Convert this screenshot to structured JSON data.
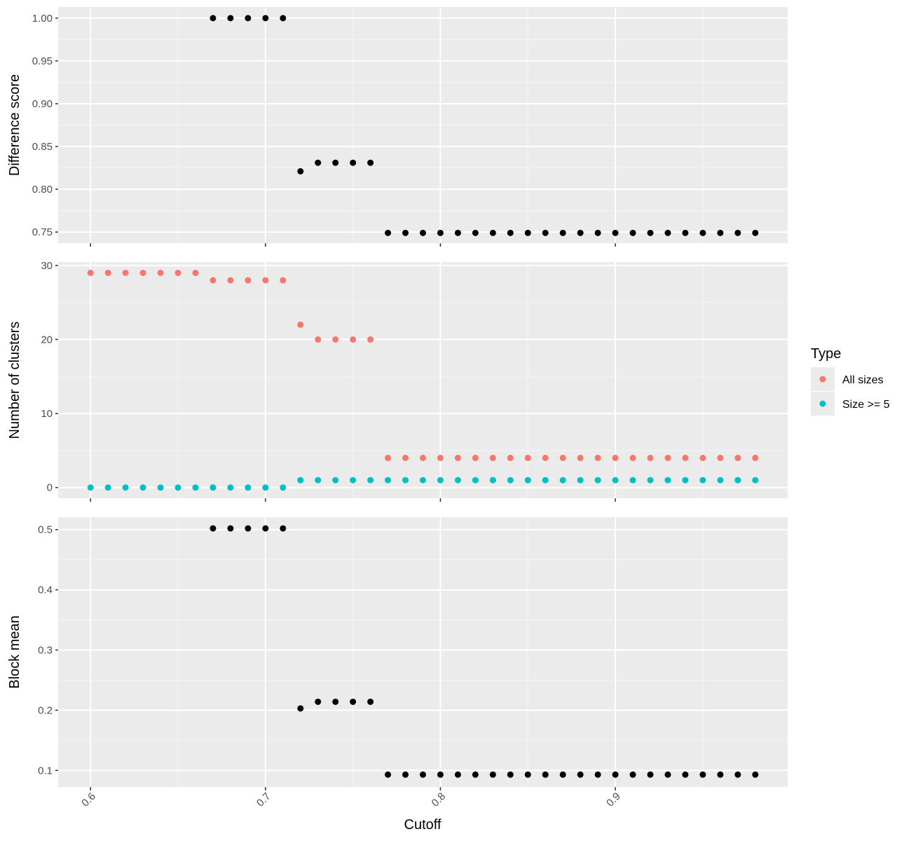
{
  "chart_data": {
    "type": "scatter",
    "xlabel": "Cutoff",
    "x_ticks": [
      "0.6",
      "0.7",
      "0.8",
      "0.9"
    ],
    "xlim": [
      0.5815,
      0.9985
    ],
    "x": [
      0.6,
      0.61,
      0.62,
      0.63,
      0.64,
      0.65,
      0.66,
      0.67,
      0.68,
      0.69,
      0.7,
      0.71,
      0.72,
      0.73,
      0.74,
      0.75,
      0.76,
      0.77,
      0.78,
      0.79,
      0.8,
      0.81,
      0.82,
      0.83,
      0.84,
      0.85,
      0.86,
      0.87,
      0.88,
      0.89,
      0.9,
      0.91,
      0.92,
      0.93,
      0.94,
      0.95,
      0.96,
      0.97,
      0.98
    ],
    "grid": true,
    "panels": [
      {
        "name": "difference",
        "ylabel": "Difference score",
        "ylim": [
          0.737,
          1.013
        ],
        "y_ticks": [
          "0.75",
          "0.80",
          "0.85",
          "0.90",
          "0.95",
          "1.00"
        ],
        "y_tick_values": [
          0.75,
          0.8,
          0.85,
          0.9,
          0.95,
          1.0
        ],
        "series": [
          {
            "color": "#000000",
            "x_start": 0.67,
            "values": [
              1.0,
              1.0,
              1.0,
              1.0,
              1.0,
              0.821,
              0.831,
              0.831,
              0.831,
              0.831,
              0.749,
              0.749,
              0.749,
              0.749,
              0.749,
              0.749,
              0.749,
              0.749,
              0.749,
              0.749,
              0.749,
              0.749,
              0.749,
              0.749,
              0.749,
              0.749,
              0.749,
              0.749,
              0.749,
              0.749,
              0.749,
              0.749
            ]
          }
        ]
      },
      {
        "name": "clusters",
        "ylabel": "Number of clusters",
        "ylim": [
          -1.45,
          30.45
        ],
        "y_ticks": [
          "0",
          "10",
          "20",
          "30"
        ],
        "y_tick_values": [
          0,
          10,
          20,
          30
        ],
        "series": [
          {
            "name": "All sizes",
            "color": "#F8766D",
            "x_start": 0.6,
            "values": [
              29,
              29,
              29,
              29,
              29,
              29,
              29,
              28,
              28,
              28,
              28,
              28,
              22,
              20,
              20,
              20,
              20,
              4,
              4,
              4,
              4,
              4,
              4,
              4,
              4,
              4,
              4,
              4,
              4,
              4,
              4,
              4,
              4,
              4,
              4,
              4,
              4,
              4,
              4
            ]
          },
          {
            "name": "Size >= 5",
            "color": "#00BFC4",
            "x_start": 0.6,
            "values": [
              0,
              0,
              0,
              0,
              0,
              0,
              0,
              0,
              0,
              0,
              0,
              0,
              1,
              1,
              1,
              1,
              1,
              1,
              1,
              1,
              1,
              1,
              1,
              1,
              1,
              1,
              1,
              1,
              1,
              1,
              1,
              1,
              1,
              1,
              1,
              1,
              1,
              1,
              1
            ]
          }
        ]
      },
      {
        "name": "block",
        "ylabel": "Block mean",
        "ylim": [
          0.0724,
          0.5206
        ],
        "y_ticks": [
          "0.1",
          "0.2",
          "0.3",
          "0.4",
          "0.5"
        ],
        "y_tick_values": [
          0.1,
          0.2,
          0.3,
          0.4,
          0.5
        ],
        "series": [
          {
            "color": "#000000",
            "x_start": 0.67,
            "values": [
              0.502,
              0.502,
              0.502,
              0.502,
              0.502,
              0.203,
              0.214,
              0.214,
              0.214,
              0.214,
              0.093,
              0.093,
              0.093,
              0.093,
              0.093,
              0.093,
              0.093,
              0.093,
              0.093,
              0.093,
              0.093,
              0.093,
              0.093,
              0.093,
              0.093,
              0.093,
              0.093,
              0.093,
              0.093,
              0.093,
              0.093,
              0.093
            ]
          }
        ]
      }
    ],
    "legend": {
      "title": "Type",
      "position": "right",
      "entries": [
        {
          "label": "All sizes",
          "color": "#F8766D"
        },
        {
          "label": "Size >= 5",
          "color": "#00BFC4"
        }
      ]
    }
  },
  "colors": {
    "panel_background": "#EBEBEB",
    "grid_major": "#FFFFFF",
    "axis_text": "#4D4D4D"
  }
}
